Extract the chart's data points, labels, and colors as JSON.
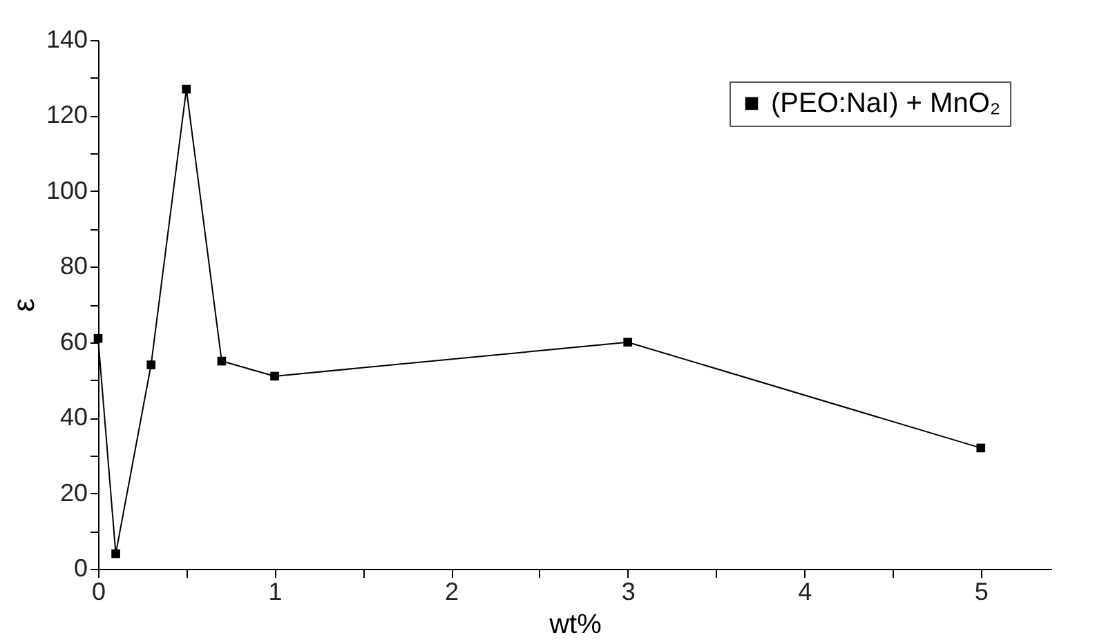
{
  "chart_data": {
    "type": "line",
    "xlabel": "wt%",
    "ylabel": "ε",
    "x": [
      0,
      0.1,
      0.3,
      0.5,
      0.7,
      1,
      3,
      5
    ],
    "series": [
      {
        "name": "(PEO:NaI) + MnO₂",
        "color": "#000000",
        "values": [
          61,
          4,
          54,
          127,
          55,
          51,
          60,
          32
        ]
      }
    ],
    "xlim": [
      0,
      5.4
    ],
    "xticks": [
      0,
      {
        "value": 0.5,
        "label": null
      },
      1,
      {
        "value": 1.5,
        "label": null
      },
      2,
      {
        "value": 2.5,
        "label": null
      },
      3,
      {
        "value": 3.5,
        "label": null
      },
      4,
      {
        "value": 4.5,
        "label": null
      },
      5
    ],
    "ylim": [
      0,
      140
    ],
    "yticks": [
      0,
      {
        "value": 10,
        "label": null
      },
      20,
      {
        "value": 30,
        "label": null
      },
      40,
      {
        "value": 50,
        "label": null
      },
      60,
      {
        "value": 70,
        "label": null
      },
      80,
      {
        "value": 90,
        "label": null
      },
      100,
      {
        "value": 110,
        "label": null
      },
      120,
      {
        "value": 130,
        "label": null
      },
      140
    ],
    "grid": false,
    "legend": "top right",
    "marker": "square",
    "line_style": "solid"
  }
}
